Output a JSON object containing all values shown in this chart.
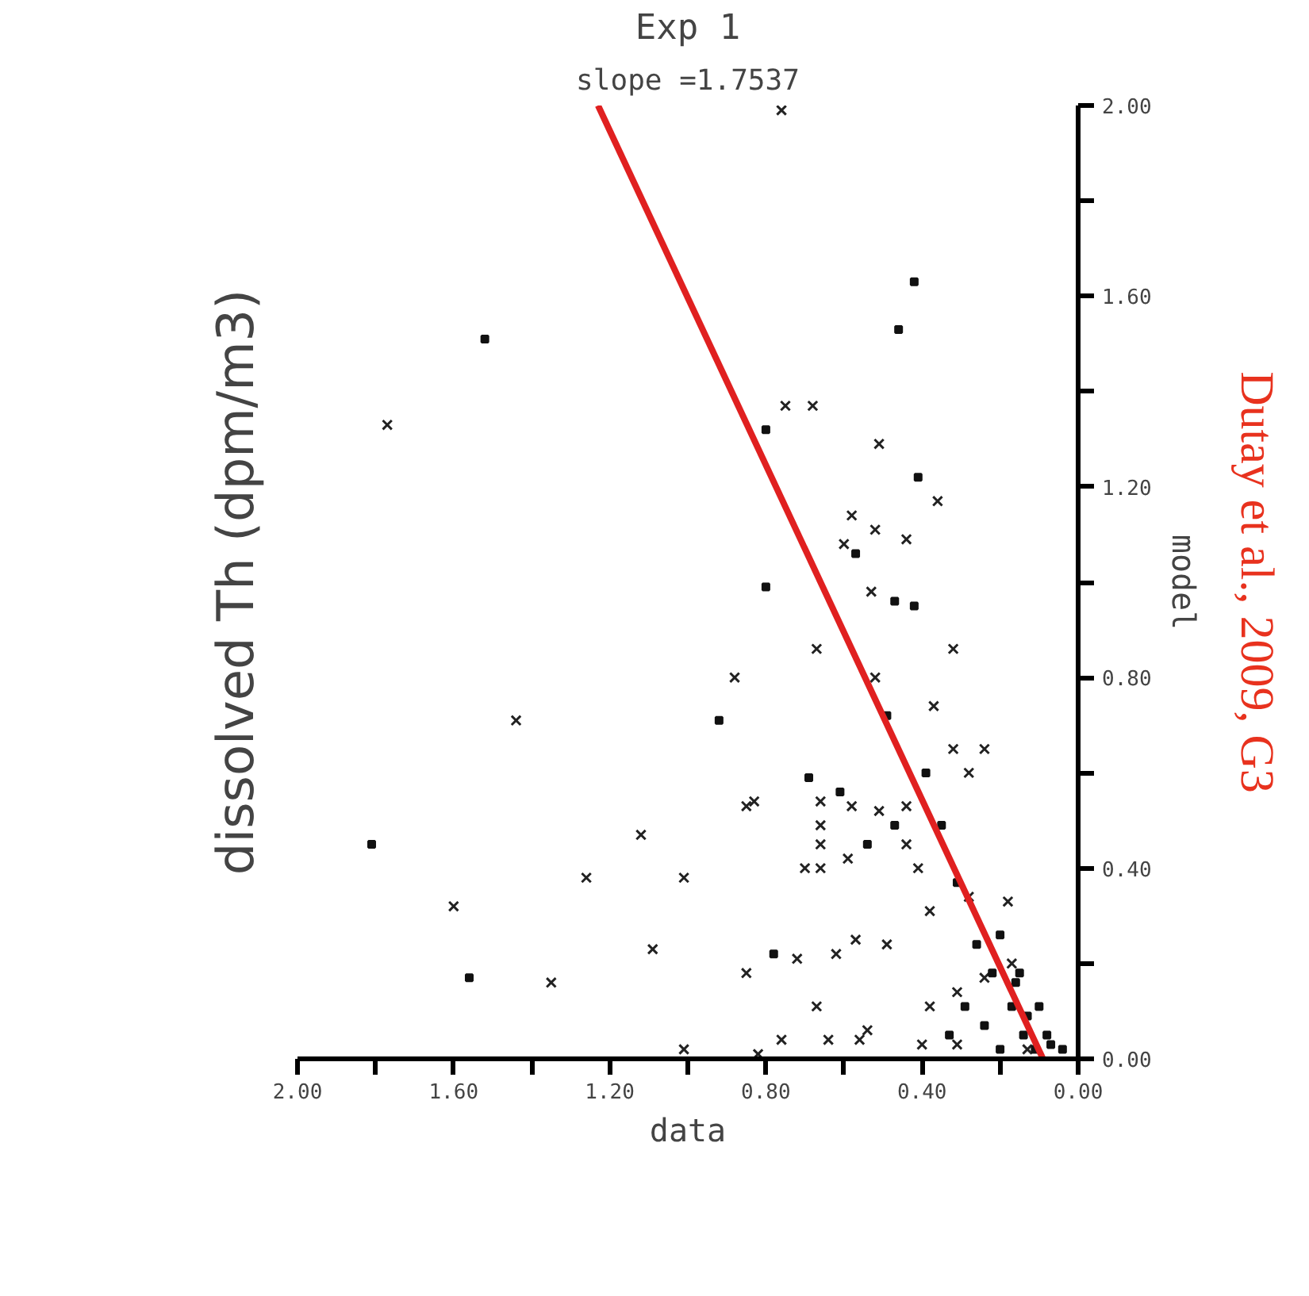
{
  "chart_data": {
    "type": "scatter",
    "title": "Exp 1",
    "subtitle": "slope =1.7537",
    "xlabel": "data",
    "ylabel": "model",
    "annotations": [
      "dissolved Th (dpm/m3)",
      "Dutay et al., 2009, G3"
    ],
    "xlim": [
      2.0,
      0.0
    ],
    "ylim": [
      0.0,
      2.0
    ],
    "xticks": [
      {
        "value": 0.0,
        "label": "0.00"
      },
      {
        "value": 0.2,
        "label": null
      },
      {
        "value": 0.4,
        "label": "0.40"
      },
      {
        "value": 0.6,
        "label": null
      },
      {
        "value": 0.8,
        "label": "0.80"
      },
      {
        "value": 1.0,
        "label": null
      },
      {
        "value": 1.2,
        "label": "1.20"
      },
      {
        "value": 1.4,
        "label": null
      },
      {
        "value": 1.6,
        "label": "1.60"
      },
      {
        "value": 1.8,
        "label": null
      },
      {
        "value": 2.0,
        "label": "2.00"
      }
    ],
    "yticks": [
      {
        "value": 0.0,
        "label": "0.00"
      },
      {
        "value": 0.2,
        "label": null
      },
      {
        "value": 0.4,
        "label": "0.40"
      },
      {
        "value": 0.6,
        "label": null
      },
      {
        "value": 0.8,
        "label": "0.80"
      },
      {
        "value": 1.0,
        "label": null
      },
      {
        "value": 1.2,
        "label": "1.20"
      },
      {
        "value": 1.4,
        "label": null
      },
      {
        "value": 1.6,
        "label": "1.60"
      },
      {
        "value": 1.8,
        "label": null
      },
      {
        "value": 2.0,
        "label": "2.00"
      }
    ],
    "series": [
      {
        "marker": "cross",
        "color": "#222222",
        "x": [
          1.77,
          0.76,
          0.75,
          0.68,
          0.51,
          0.36,
          0.44,
          0.58,
          0.6,
          0.52,
          0.53,
          0.88,
          1.44,
          0.83,
          1.12,
          1.26,
          1.01,
          1.6,
          1.09,
          1.35,
          0.85,
          1.01,
          0.82,
          0.67,
          0.52,
          0.32,
          0.37,
          0.32,
          0.24,
          0.28,
          0.85,
          0.66,
          0.66,
          0.66,
          0.66,
          0.7,
          0.59,
          0.44,
          0.41,
          0.28,
          0.18,
          0.62,
          0.72,
          0.67,
          0.64,
          0.76,
          0.56,
          0.54,
          0.49,
          0.57,
          0.51,
          0.58,
          0.44,
          0.38,
          0.31,
          0.38,
          0.24,
          0.17,
          0.31,
          0.13,
          0.4
        ],
        "values": [
          1.33,
          1.99,
          1.37,
          1.37,
          1.29,
          1.17,
          1.09,
          1.14,
          1.08,
          1.11,
          0.98,
          0.8,
          0.71,
          0.54,
          0.47,
          0.38,
          0.38,
          0.32,
          0.23,
          0.16,
          0.18,
          0.02,
          0.01,
          0.86,
          0.8,
          0.86,
          0.74,
          0.65,
          0.65,
          0.6,
          0.53,
          0.54,
          0.49,
          0.45,
          0.4,
          0.4,
          0.42,
          0.45,
          0.4,
          0.34,
          0.33,
          0.22,
          0.21,
          0.11,
          0.04,
          0.04,
          0.04,
          0.06,
          0.24,
          0.25,
          0.52,
          0.53,
          0.53,
          0.31,
          0.14,
          0.11,
          0.17,
          0.2,
          0.03,
          0.02,
          0.03
        ]
      },
      {
        "marker": "square",
        "color": "#111111",
        "x": [
          1.52,
          0.42,
          0.46,
          0.41,
          0.8,
          0.8,
          0.57,
          0.47,
          0.42,
          1.81,
          1.56,
          0.92,
          0.78,
          0.49,
          0.54,
          0.61,
          0.69,
          0.39,
          0.35,
          0.47,
          0.31,
          0.26,
          0.2,
          0.16,
          0.13,
          0.08,
          0.04,
          0.17,
          0.24,
          0.33,
          0.11,
          0.07,
          0.14,
          0.22,
          0.29,
          0.15,
          0.1,
          0.2
        ],
        "values": [
          1.51,
          1.63,
          1.53,
          1.22,
          1.32,
          0.99,
          1.06,
          0.96,
          0.95,
          0.45,
          0.17,
          0.71,
          0.22,
          0.72,
          0.45,
          0.56,
          0.59,
          0.6,
          0.49,
          0.49,
          0.37,
          0.24,
          0.26,
          0.16,
          0.09,
          0.05,
          0.02,
          0.11,
          0.07,
          0.05,
          0.02,
          0.03,
          0.05,
          0.18,
          0.11,
          0.18,
          0.11,
          0.02
        ]
      },
      {
        "type": "line",
        "color": "#e02020",
        "x": [
          0.09,
          1.23
        ],
        "values": [
          0.0,
          2.0
        ]
      }
    ]
  }
}
